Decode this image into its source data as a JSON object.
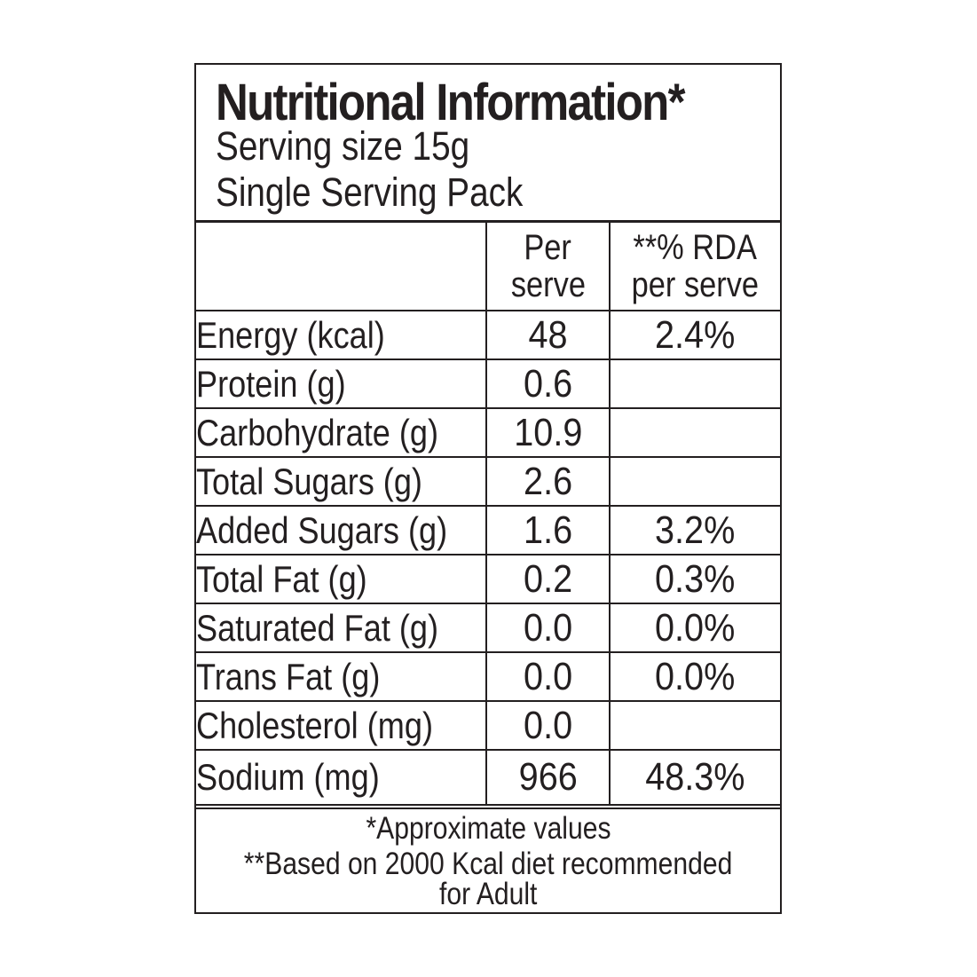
{
  "header": {
    "title": "Nutritional Information*",
    "serving_size": "Serving size 15g",
    "pack": "Single Serving Pack"
  },
  "columns": {
    "nutrient": "",
    "per_serve_line1": "Per",
    "per_serve_line2": "serve",
    "rda_line1": "**% RDA",
    "rda_line2": "per serve"
  },
  "rows": [
    {
      "name": "Energy (kcal)",
      "per_serve": "48",
      "rda": "2.4%"
    },
    {
      "name": "Protein (g)",
      "per_serve": "0.6",
      "rda": ""
    },
    {
      "name": "Carbohydrate (g)",
      "per_serve": "10.9",
      "rda": ""
    },
    {
      "name": "Total Sugars (g)",
      "per_serve": "2.6",
      "rda": ""
    },
    {
      "name": "Added Sugars (g)",
      "per_serve": "1.6",
      "rda": "3.2%"
    },
    {
      "name": "Total Fat (g)",
      "per_serve": "0.2",
      "rda": "0.3%"
    },
    {
      "name": "Saturated Fat (g)",
      "per_serve": "0.0",
      "rda": "0.0%"
    },
    {
      "name": "Trans Fat (g)",
      "per_serve": "0.0",
      "rda": "0.0%"
    },
    {
      "name": "Cholesterol (mg)",
      "per_serve": "0.0",
      "rda": ""
    },
    {
      "name": "Sodium (mg)",
      "per_serve": "966",
      "rda": "48.3%"
    }
  ],
  "footer": {
    "note1": "*Approximate values",
    "note2": "**Based on 2000 Kcal diet recommended",
    "note3": "for Adult"
  }
}
